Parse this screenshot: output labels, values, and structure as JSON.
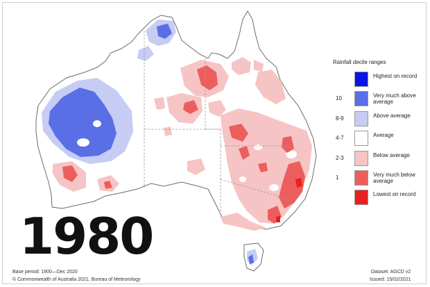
{
  "year": "1980",
  "legend": {
    "title": "Rainfall decile ranges",
    "items": [
      {
        "range": "",
        "label": "Highest on record",
        "color": "#0a14e6"
      },
      {
        "range": "10",
        "label": "Very much above average",
        "color": "#5a6ee6"
      },
      {
        "range": "8-9",
        "label": "Above average",
        "color": "#c6ccf4"
      },
      {
        "range": "4-7",
        "label": "Average",
        "color": "#ffffff"
      },
      {
        "range": "2-3",
        "label": "Below average",
        "color": "#f6c4c4"
      },
      {
        "range": "1",
        "label": "Very much below average",
        "color": "#ec5e5e"
      },
      {
        "range": "",
        "label": "Lowest on record",
        "color": "#e82020"
      }
    ]
  },
  "footer": {
    "base_period": "Base period: 1900—Dec 2020",
    "dataset": "Dataset: AGCD v2",
    "copyright": "© Commonwealth of Australia 2021, Bureau of Meteorology",
    "issued": "Issued: 15/02/2021"
  },
  "colors": {
    "coast": "#6a6a6a",
    "state_border": "#9a9a9a"
  }
}
